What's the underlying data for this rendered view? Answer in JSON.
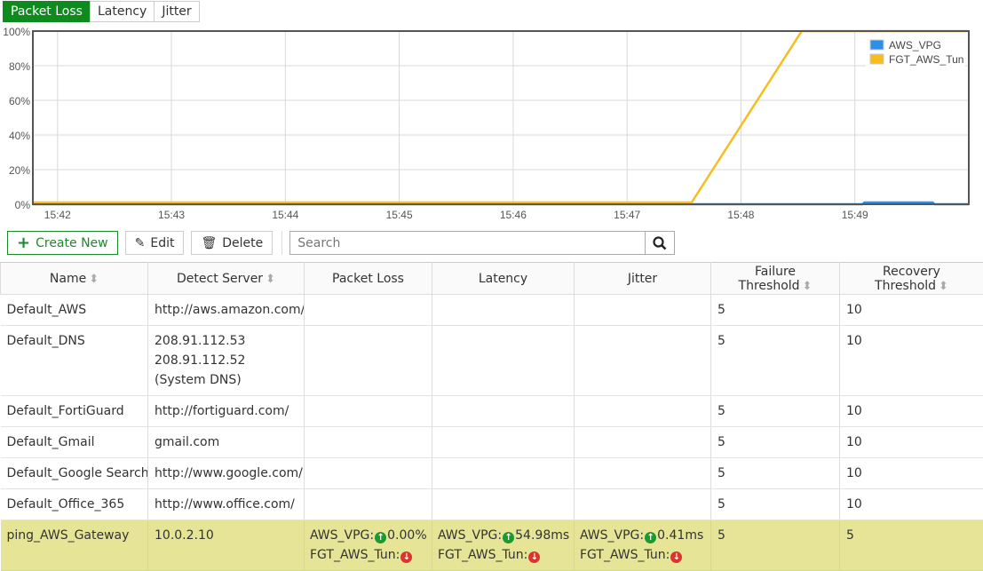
{
  "tabs": [
    {
      "label": "Packet Loss",
      "active": true
    },
    {
      "label": "Latency",
      "active": false
    },
    {
      "label": "Jitter",
      "active": false
    }
  ],
  "chart_data": {
    "type": "line",
    "yticks": [
      "0%",
      "20%",
      "40%",
      "60%",
      "80%",
      "100%"
    ],
    "ylim": [
      0,
      100
    ],
    "xticks": [
      "15:42",
      "15:43",
      "15:44",
      "15:45",
      "15:46",
      "15:47",
      "15:48",
      "15:49"
    ],
    "xlim": [
      "15:41:47",
      "15:50:00"
    ],
    "grid": true,
    "legend_position": "top-right",
    "series": [
      {
        "name": "AWS_VPG",
        "color": "#2f8fe8",
        "points": [
          [
            "15:41:47",
            0
          ],
          [
            "15:49:04",
            0
          ],
          [
            "15:49:05",
            1
          ],
          [
            "15:49:41",
            1
          ],
          [
            "15:49:42",
            0
          ],
          [
            "15:50:00",
            0
          ]
        ]
      },
      {
        "name": "FGT_AWS_Tun",
        "color": "#f5bd1f",
        "points": [
          [
            "15:41:47",
            1
          ],
          [
            "15:47:34",
            1
          ],
          [
            "15:48:32",
            100
          ],
          [
            "15:50:00",
            100
          ]
        ]
      }
    ]
  },
  "toolbar": {
    "create": "Create New",
    "edit": "Edit",
    "delete": "Delete",
    "search_placeholder": "Search",
    "search_value": ""
  },
  "table": {
    "columns": [
      "Name",
      "Detect Server",
      "Packet Loss",
      "Latency",
      "Jitter",
      "Failure Threshold",
      "Recovery Threshold"
    ],
    "rows": [
      {
        "name": "Default_AWS",
        "server": "http://aws.amazon.com/",
        "failure": "5",
        "recovery": "10"
      },
      {
        "name": "Default_DNS",
        "server": "208.91.112.53\n208.91.112.52\n(System DNS)",
        "failure": "5",
        "recovery": "10"
      },
      {
        "name": "Default_FortiGuard",
        "server": "http://fortiguard.com/",
        "failure": "5",
        "recovery": "10"
      },
      {
        "name": "Default_Gmail",
        "server": "gmail.com",
        "failure": "5",
        "recovery": "10"
      },
      {
        "name": "Default_Google Search",
        "server": "http://www.google.com/",
        "failure": "5",
        "recovery": "10"
      },
      {
        "name": "Default_Office_365",
        "server": "http://www.office.com/",
        "failure": "5",
        "recovery": "10"
      },
      {
        "name": "ping_AWS_Gateway",
        "server": "10.0.2.10",
        "failure": "5",
        "recovery": "5",
        "selected": true,
        "packet_loss": [
          {
            "member": "AWS_VPG:",
            "status": "up",
            "value": "0.00%"
          },
          {
            "member": "FGT_AWS_Tun:",
            "status": "down",
            "value": ""
          }
        ],
        "latency": [
          {
            "member": "AWS_VPG:",
            "status": "up",
            "value": "54.98ms"
          },
          {
            "member": "FGT_AWS_Tun:",
            "status": "down",
            "value": ""
          }
        ],
        "jitter": [
          {
            "member": "AWS_VPG:",
            "status": "up",
            "value": "0.41ms"
          },
          {
            "member": "FGT_AWS_Tun:",
            "status": "down",
            "value": ""
          }
        ]
      }
    ]
  }
}
